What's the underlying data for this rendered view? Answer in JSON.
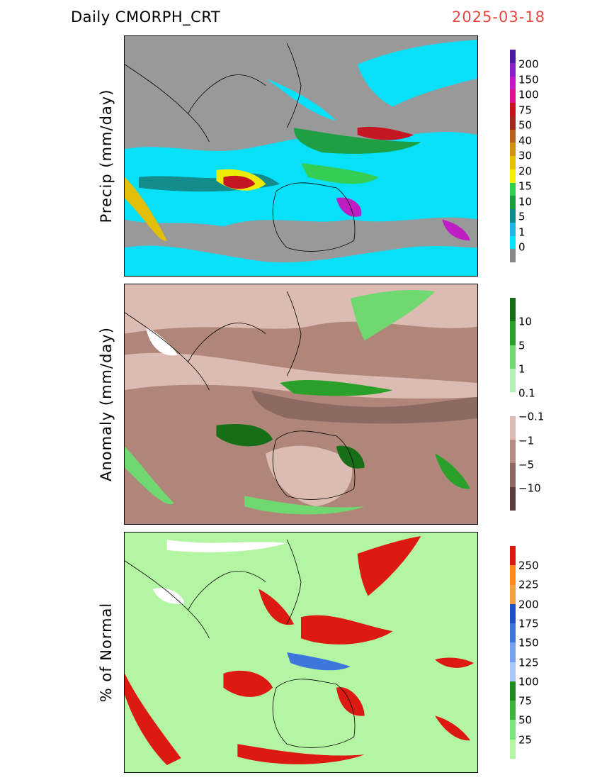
{
  "header": {
    "product": "Daily  CMORPH_CRT",
    "date": "2025-03-18"
  },
  "panels": [
    {
      "id": "precip",
      "ylabel": "Precip (mm/day)",
      "background_color": "#999999",
      "colorbar": {
        "colors": [
          "#4a1aa0",
          "#8a20c8",
          "#c218c8",
          "#e0108c",
          "#c8101e",
          "#a0281e",
          "#b86418",
          "#d29010",
          "#e6c000",
          "#f0f000",
          "#30d050",
          "#18a040",
          "#0d8c8c",
          "#1eb4e6",
          "#00e4ff",
          "#888888"
        ],
        "labels": [
          "200",
          "150",
          "100",
          "75",
          "50",
          "40",
          "30",
          "20",
          "15",
          "10",
          "5",
          "1",
          "0"
        ]
      }
    },
    {
      "id": "anomaly",
      "ylabel": "Anomaly (mm/day)",
      "background_color": "#b0867a",
      "colorbar": {
        "colors": [
          "#166e16",
          "#2aa02a",
          "#70d870",
          "#b4f0b4",
          "#ffffff",
          "#dcbcb2",
          "#b48c82",
          "#8c6a62",
          "#5c3e3a"
        ],
        "labels": [
          "10",
          "5",
          "1",
          "0.1",
          "−0.1",
          "−1",
          "−5",
          "−10"
        ]
      }
    },
    {
      "id": "percent",
      "ylabel": "% of Normal",
      "background_color": "#b4f5a4",
      "colorbar": {
        "colors": [
          "#dc1a12",
          "#ff8a1a",
          "#f0a040",
          "#1e50c8",
          "#3c78dc",
          "#78a0f0",
          "#a8c8f8",
          "#1e8c1e",
          "#3cb43c",
          "#78e678",
          "#b4f5a4"
        ],
        "labels": [
          "250",
          "225",
          "200",
          "175",
          "150",
          "125",
          "100",
          "75",
          "50",
          "25"
        ]
      }
    }
  ]
}
